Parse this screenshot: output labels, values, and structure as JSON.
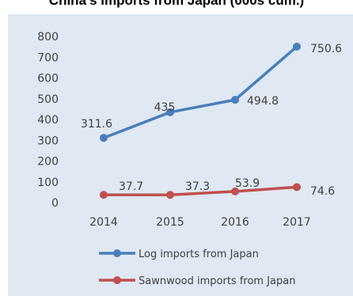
{
  "title": "China's imports from Japan (000s cum.)",
  "chart_data": {
    "type": "line",
    "title": "China's imports from Japan (000s cum.)",
    "x": [
      "2014",
      "2015",
      "2016",
      "2017"
    ],
    "ylim": [
      0,
      800
    ],
    "yticks": [
      0,
      100,
      200,
      300,
      400,
      500,
      600,
      700,
      800
    ],
    "grid": false,
    "legend_position": "bottom",
    "series": [
      {
        "name": "Log imports from Japan",
        "values": [
          311.6,
          435,
          494.8,
          750.6
        ],
        "labels": [
          "311.6",
          "435",
          "494.8",
          "750.6"
        ],
        "color": "#4a7ebb"
      },
      {
        "name": "Sawnwood imports from Japan",
        "values": [
          37.7,
          37.3,
          53.9,
          74.6
        ],
        "labels": [
          "37.7",
          "37.3",
          "53.9",
          "74.6"
        ],
        "color": "#c0504d"
      }
    ]
  }
}
